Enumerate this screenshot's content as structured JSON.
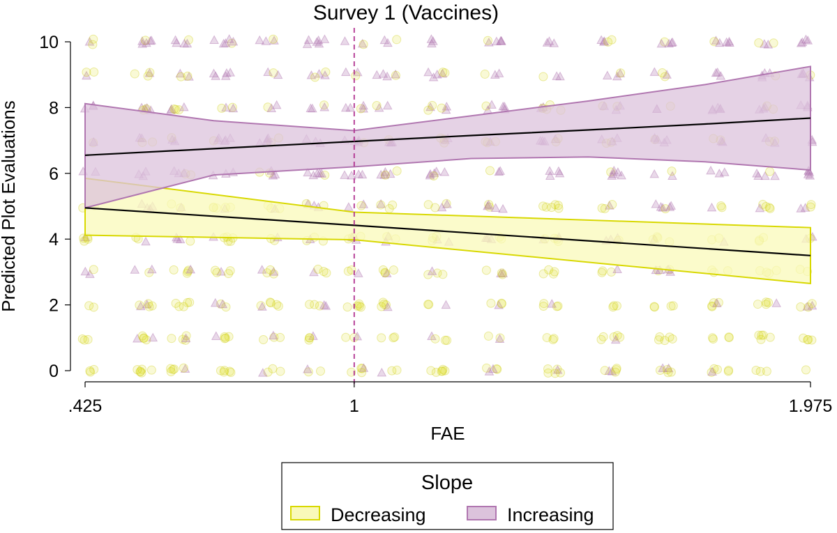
{
  "chart_data": {
    "type": "line",
    "title": "Survey 1 (Vaccines)",
    "xlabel": "FAE",
    "ylabel": "Predicted Plot Evaluations",
    "xlim": [
      0.425,
      1.975
    ],
    "ylim": [
      0,
      10
    ],
    "x_ticks": [
      ".425",
      "1",
      "1.975"
    ],
    "x_tick_values": [
      0.425,
      1,
      1.975
    ],
    "y_ticks": [
      0,
      2,
      4,
      6,
      8,
      10
    ],
    "reference_line": {
      "x": 1,
      "style": "dashed",
      "color": "#b0308f"
    },
    "grid": false,
    "legend": {
      "title": "Slope",
      "placement": "bottom-center",
      "entries": [
        "Decreasing",
        "Increasing"
      ]
    },
    "series": [
      {
        "name": "Decreasing",
        "color": "#d8d800",
        "fill": "#f9f9b9",
        "marker": "circle",
        "x": [
          0.425,
          1,
          1.975
        ],
        "fit": [
          4.95,
          4.42,
          3.5
        ],
        "ci_upper": [
          5.85,
          4.82,
          4.35
        ],
        "ci_lower": [
          4.12,
          3.98,
          2.65
        ]
      },
      {
        "name": "Increasing",
        "color": "#b076b0",
        "fill": "#dcc3dc",
        "marker": "triangle",
        "x": [
          0.425,
          0.7,
          1,
          1.25,
          1.5,
          1.75,
          1.975
        ],
        "fit": [
          6.55,
          6.75,
          6.97,
          7.15,
          7.32,
          7.5,
          7.68
        ],
        "ci_upper": [
          8.12,
          7.6,
          7.3,
          7.75,
          8.2,
          8.7,
          9.25
        ],
        "ci_lower": [
          4.95,
          5.95,
          6.2,
          6.45,
          6.5,
          6.35,
          6.1
        ]
      }
    ],
    "scatter_x_columns": [
      0.425,
      0.55,
      0.63,
      0.72,
      0.82,
      0.92,
      1.0,
      1.07,
      1.18,
      1.3,
      1.42,
      1.55,
      1.66,
      1.78,
      1.88,
      1.975
    ],
    "scatter_y_levels": [
      0,
      1,
      2,
      3,
      4,
      5,
      6,
      7,
      8,
      9,
      10
    ]
  }
}
